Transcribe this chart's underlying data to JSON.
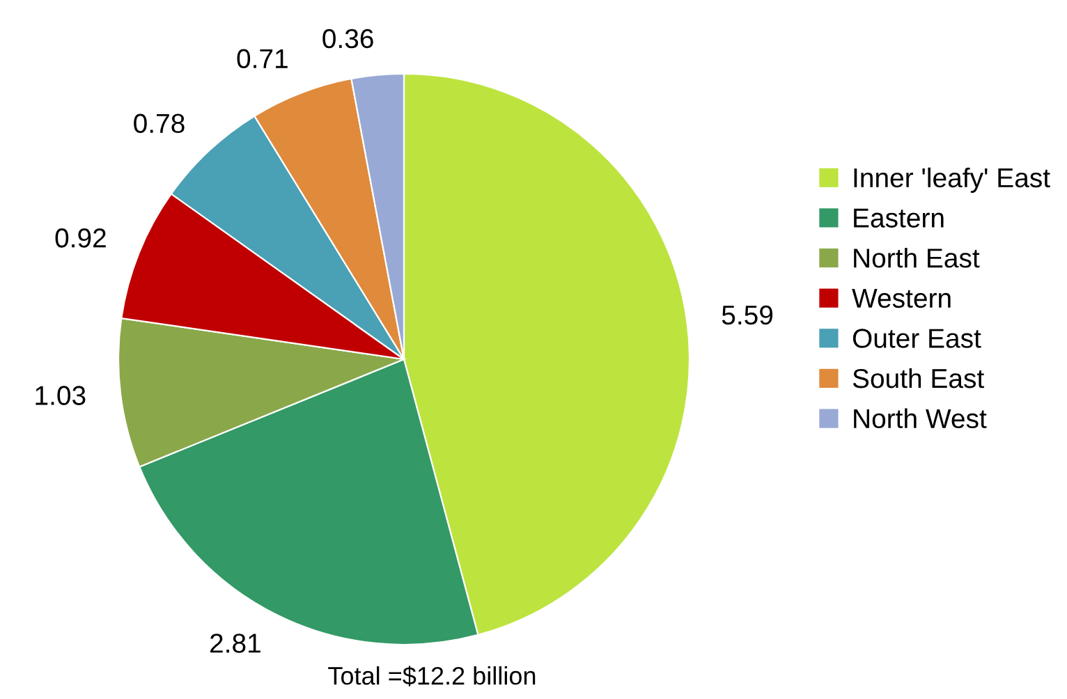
{
  "chart_data": {
    "type": "pie",
    "categories": [
      "Inner 'leafy' East",
      "Eastern",
      "North East",
      "Western",
      "Outer East",
      "South East",
      "North West"
    ],
    "values": [
      5.59,
      2.81,
      1.03,
      0.92,
      0.78,
      0.71,
      0.36
    ],
    "colors": [
      "#bde33f",
      "#339966",
      "#8aa84a",
      "#c00000",
      "#4aa0b5",
      "#e08a3c",
      "#98a9d5"
    ],
    "data_labels": true,
    "legend": "right",
    "annotations": [
      "Total =$12.2 billion"
    ]
  }
}
